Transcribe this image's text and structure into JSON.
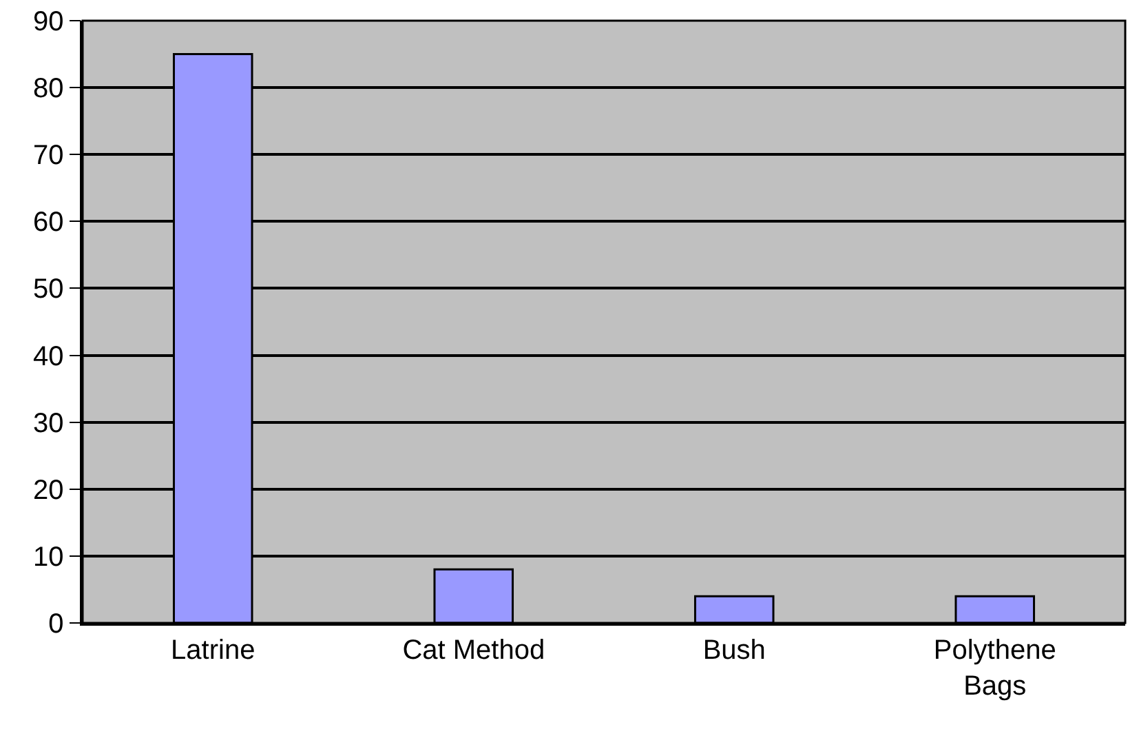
{
  "chart_data": {
    "type": "bar",
    "categories": [
      "Latrine",
      "Cat Method",
      "Bush",
      "Polythene Bags"
    ],
    "values": [
      85,
      8,
      4,
      4
    ],
    "color": "#9999ff",
    "ylim": [
      0,
      90
    ],
    "yticks": [
      0,
      10,
      20,
      30,
      40,
      50,
      60,
      70,
      80,
      90
    ],
    "grid": "y",
    "legend": false
  }
}
